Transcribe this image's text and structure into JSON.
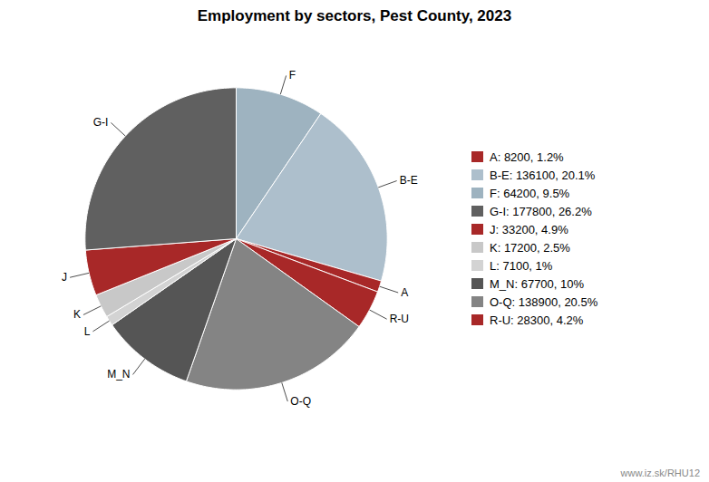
{
  "chart_data": {
    "type": "pie",
    "title": "Employment by sectors, Pest County, 2023",
    "categories": [
      "F",
      "B-E",
      "A",
      "R-U",
      "O-Q",
      "M_N",
      "L",
      "K",
      "J",
      "G-I"
    ],
    "values": [
      64200,
      136100,
      8200,
      28300,
      138900,
      67700,
      7100,
      17200,
      33200,
      177800
    ],
    "colors": [
      "#9eb3c0",
      "#adbfcc",
      "#a82828",
      "#a82828",
      "#848484",
      "#555555",
      "#d3d3d3",
      "#c8c8c8",
      "#a82828",
      "#606060"
    ],
    "legend": "right",
    "legend_entries": [
      {
        "label": "A: 8200, 1.2%",
        "color": "#a82828"
      },
      {
        "label": "B-E: 136100, 20.1%",
        "color": "#adbfcc"
      },
      {
        "label": "F: 64200, 9.5%",
        "color": "#9eb3c0"
      },
      {
        "label": "G-I: 177800, 26.2%",
        "color": "#606060"
      },
      {
        "label": "J: 33200, 4.9%",
        "color": "#a82828"
      },
      {
        "label": "K: 17200, 2.5%",
        "color": "#c8c8c8"
      },
      {
        "label": "L: 7100, 1%",
        "color": "#d3d3d3"
      },
      {
        "label": "M_N: 67700, 10%",
        "color": "#555555"
      },
      {
        "label": "O-Q: 138900, 20.5%",
        "color": "#848484"
      },
      {
        "label": "R-U: 28300, 4.2%",
        "color": "#a82828"
      }
    ],
    "annotations": [
      "www.iz.sk/RHU12"
    ]
  }
}
